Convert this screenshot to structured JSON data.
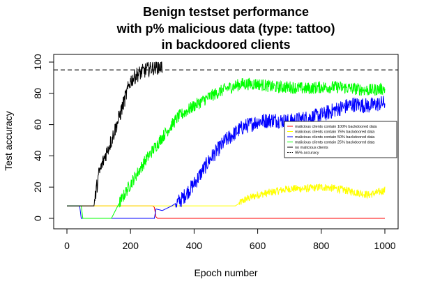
{
  "chart_data": {
    "type": "line",
    "title_lines": [
      "Benign testset performance",
      "with p% malicious data (type: tattoo)",
      "in backdoored clients"
    ],
    "xlabel": "Epoch number",
    "ylabel": "Test accuracy",
    "xlim": [
      0,
      1000
    ],
    "ylim": [
      0,
      100
    ],
    "x_ticks": [
      0,
      200,
      400,
      600,
      800,
      1000
    ],
    "y_ticks": [
      0,
      20,
      40,
      60,
      80,
      100
    ],
    "legend_position": "right",
    "reference_lines": [
      {
        "name": "95% accuracy",
        "y": 95,
        "color": "#000000",
        "style": "dashed"
      }
    ],
    "series": [
      {
        "name": "malicious clients contain 100% backdoored data",
        "color": "#ff0000",
        "noise": 0,
        "x": [
          0,
          270,
          275,
          280,
          285,
          1000
        ],
        "y": [
          8,
          8,
          7,
          1,
          0,
          0
        ]
      },
      {
        "name": "malicious clients contain 75% backdoored data",
        "color": "#ffff00",
        "noise": 2.5,
        "x": [
          0,
          530,
          560,
          600,
          650,
          700,
          750,
          800,
          850,
          900,
          950,
          1000
        ],
        "y": [
          8,
          8,
          12,
          15,
          17,
          19,
          19,
          20,
          19,
          17,
          15,
          18
        ]
      },
      {
        "name": "malicious clients contain 50% backdoored data",
        "color": "#0000ff",
        "noise": 5,
        "x": [
          0,
          40,
          45,
          275,
          280,
          300,
          330,
          360,
          400,
          450,
          500,
          550,
          600,
          650,
          700,
          750,
          800,
          850,
          900,
          950,
          1000
        ],
        "y": [
          8,
          8,
          0,
          0,
          6,
          5,
          8,
          12,
          22,
          38,
          50,
          58,
          62,
          63,
          62,
          64,
          66,
          70,
          73,
          72,
          74
        ]
      },
      {
        "name": "malicious clients contain 25% backdoored data",
        "color": "#00ff00",
        "noise": 4,
        "x": [
          0,
          45,
          50,
          140,
          160,
          200,
          250,
          300,
          350,
          400,
          450,
          500,
          550,
          600,
          650,
          700,
          750,
          800,
          850,
          900,
          950,
          1000
        ],
        "y": [
          8,
          8,
          0,
          0,
          8,
          22,
          38,
          52,
          65,
          72,
          78,
          83,
          86,
          86,
          84,
          84,
          83,
          84,
          84,
          83,
          82,
          83
        ]
      },
      {
        "name": "no malicious clients",
        "color": "#000000",
        "noise": 5,
        "x": [
          0,
          85,
          90,
          100,
          120,
          140,
          160,
          180,
          200,
          220,
          240,
          260,
          280,
          300
        ],
        "y": [
          8,
          8,
          15,
          28,
          40,
          50,
          62,
          75,
          88,
          92,
          94,
          96,
          97,
          97
        ]
      }
    ]
  }
}
